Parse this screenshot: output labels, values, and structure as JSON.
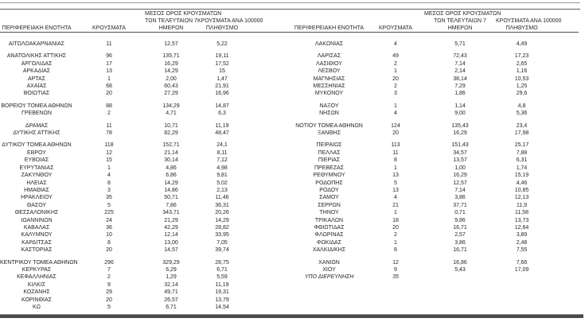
{
  "table": {
    "headers": {
      "region": "ΠΕΡΙΦΕΡΕΙΑΚΗ ΕΝΟΤΗΤΑ",
      "cases": "ΚΡΟΥΣΜΑΤΑ",
      "avg7_lines": [
        "ΜΕΣΟΣ ΟΡΟΣ ΚΡΟΥΣΜΑΤΩΝ",
        "ΤΩΝ ΤΕΛΕΥΤΑΙΩΝ 7",
        "ΗΜΕΡΩΝ"
      ],
      "per100k_lines": [
        "ΚΡΟΥΣΜΑΤΑ ΑΝΑ 100000",
        "ΠΛΗΘΥΣΜΟ"
      ]
    },
    "groups": [
      {
        "rows": [
          {
            "left": [
              "ΑΙΤΩΛΟΑΚΑΡΝΑΝΙΑΣ",
              "11",
              "12,57",
              "5,22"
            ],
            "right": [
              "ΛΑΚΩΝΙΑΣ",
              "4",
              "5,71",
              "4,49"
            ]
          }
        ]
      },
      {
        "rows": [
          {
            "left": [
              "ΑΝΑΤΟΛΙΚΗΣ ΑΤΤΙΚΗΣ",
              "96",
              "135,71",
              "19,11"
            ],
            "right": [
              "ΛΑΡΙΣΑΣ",
              "49",
              "72,43",
              "17,23"
            ]
          },
          {
            "left": [
              "ΑΡΓΟΛΙΔΑΣ",
              "17",
              "16,29",
              "17,52"
            ],
            "right": [
              "ΛΑΣΙΘΙΟΥ",
              "2",
              "7,14",
              "2,65"
            ]
          },
          {
            "left": [
              "ΑΡΚΑΔΙΑΣ",
              "13",
              "14,29",
              "15"
            ],
            "right": [
              "ΛΕΣΒΟΥ",
              "1",
              "2,14",
              "1,16"
            ]
          },
          {
            "left": [
              "ΑΡΤΑΣ",
              "1",
              "2,00",
              "1,47"
            ],
            "right": [
              "ΜΑΓΝΗΣΙΑΣ",
              "20",
              "38,14",
              "10,53"
            ]
          },
          {
            "left": [
              "ΑΧΑΪΑΣ",
              "68",
              "60,43",
              "21,91"
            ],
            "right": [
              "ΜΕΣΣΗΝΙΑΣ",
              "2",
              "7,29",
              "1,25"
            ]
          },
          {
            "left": [
              "ΒΟΙΩΤΙΑΣ",
              "20",
              "27,29",
              "16,96"
            ],
            "right": [
              "ΜΥΚΟΝΟΥ",
              "3",
              "1,86",
              "29,6"
            ]
          }
        ]
      },
      {
        "rows": [
          {
            "left": [
              "ΒΟΡΕΙΟΥ ΤΟΜΕΑ ΑΘΗΝΩΝ",
              "88",
              "134,29",
              "14,87"
            ],
            "right": [
              "ΝΑΞΟΥ",
              "1",
              "1,14",
              "4,8"
            ]
          },
          {
            "left": [
              "ΓΡΕΒΕΝΩΝ",
              "2",
              "4,71",
              "6,3"
            ],
            "right": [
              "ΝΗΣΩΝ",
              "4",
              "9,00",
              "5,36"
            ]
          }
        ]
      },
      {
        "rows": [
          {
            "left": [
              "ΔΡΑΜΑΣ",
              "11",
              "10,71",
              "11,19"
            ],
            "right": [
              "ΝΟΤΙΟΥ ΤΟΜΕΑ ΑΘΗΝΩΝ",
              "124",
              "135,43",
              "23,4"
            ]
          },
          {
            "left": [
              "ΔΥΤΙΚΗΣ ΑΤΤΙΚΗΣ",
              "78",
              "82,29",
              "48,47"
            ],
            "right": [
              "ΞΑΝΘΗΣ",
              "20",
              "16,29",
              "17,98"
            ]
          }
        ]
      },
      {
        "rows": [
          {
            "left": [
              "ΔΥΤΙΚΟΥ ΤΟΜΕΑ ΑΘΗΝΩΝ",
              "118",
              "152,71",
              "24,1"
            ],
            "right": [
              "ΠΕΙΡΑΙΩΣ",
              "113",
              "151,43",
              "25,17"
            ]
          },
          {
            "left": [
              "ΕΒΡΟΥ",
              "12",
              "21,14",
              "8,11"
            ],
            "right": [
              "ΠΕΛΛΑΣ",
              "11",
              "34,57",
              "7,88"
            ]
          },
          {
            "left": [
              "ΕΥΒΟΙΑΣ",
              "15",
              "30,14",
              "7,12"
            ],
            "right": [
              "ΠΙΕΡΙΑΣ",
              "8",
              "13,57",
              "6,31"
            ]
          },
          {
            "left": [
              "ΕΥΡΥΤΑΝΙΑΣ",
              "1",
              "4,86",
              "4,98"
            ],
            "right": [
              "ΠΡΕΒΕΖΑΣ",
              "1",
              "1,00",
              "1,74"
            ]
          },
          {
            "left": [
              "ΖΑΚΥΝΘΟΥ",
              "4",
              "6,86",
              "9,81"
            ],
            "right": [
              "ΡΕΘΥΜΝΟΥ",
              "13",
              "16,29",
              "15,19"
            ]
          },
          {
            "left": [
              "ΗΛΕΙΑΣ",
              "8",
              "14,29",
              "5,02"
            ],
            "right": [
              "ΡΟΔΟΠΗΣ",
              "5",
              "12,57",
              "4,46"
            ]
          },
          {
            "left": [
              "ΗΜΑΘΙΑΣ",
              "3",
              "14,86",
              "2,13"
            ],
            "right": [
              "ΡΟΔΟΥ",
              "13",
              "7,14",
              "10,85"
            ]
          },
          {
            "left": [
              "ΗΡΑΚΛΕΙΟΥ",
              "35",
              "50,71",
              "11,46"
            ],
            "right": [
              "ΣΑΜΟΥ",
              "4",
              "3,86",
              "12,13"
            ]
          },
          {
            "left": [
              "ΘΑΣΟΥ",
              "5",
              "7,86",
              "36,31"
            ],
            "right": [
              "ΣΕΡΡΩΝ",
              "21",
              "37,71",
              "11,9"
            ]
          },
          {
            "left": [
              "ΘΕΣΣΑΛΟΝΙΚΗΣ",
              "225",
              "343,71",
              "20,26"
            ],
            "right": [
              "ΤΗΝΟΥ",
              "1",
              "0,71",
              "11,58"
            ]
          },
          {
            "left": [
              "ΙΩΑΝΝΙΝΩΝ",
              "24",
              "21,29",
              "14,29"
            ],
            "right": [
              "ΤΡΙΚΑΛΩΝ",
              "18",
              "9,86",
              "13,73"
            ]
          },
          {
            "left": [
              "ΚΑΒΑΛΑΣ",
              "36",
              "42,29",
              "28,82"
            ],
            "right": [
              "ΦΘΙΩΤΙΔΑΣ",
              "20",
              "16,71",
              "12,64"
            ]
          },
          {
            "left": [
              "ΚΑΛΥΜΝΟΥ",
              "10",
              "12,14",
              "33,95"
            ],
            "right": [
              "ΦΛΩΡΙΝΑΣ",
              "2",
              "2,57",
              "3,89"
            ]
          },
          {
            "left": [
              "ΚΑΡΔΙΤΣΑΣ",
              "8",
              "13,00",
              "7,05"
            ],
            "right": [
              "ΦΩΚΙΔΑΣ",
              "1",
              "3,86",
              "2,48"
            ]
          },
          {
            "left": [
              "ΚΑΣΤΟΡΙΑΣ",
              "20",
              "14,57",
              "39,74"
            ],
            "right": [
              "ΧΑΛΚΙΔΙΚΗΣ",
              "8",
              "16,71",
              "7,55"
            ]
          }
        ]
      },
      {
        "rows": [
          {
            "left": [
              "ΚΕΝΤΡΙΚΟΥ ΤΟΜΕΑ ΑΘΗΝΩΝ",
              "296",
              "329,29",
              "28,75"
            ],
            "right": [
              "ΧΑΝΙΩΝ",
              "12",
              "16,86",
              "7,66"
            ]
          },
          {
            "left": [
              "ΚΕΡΚΥΡΑΣ",
              "7",
              "6,29",
              "6,71"
            ],
            "right": [
              "ΧΙΟΥ",
              "9",
              "5,43",
              "17,09"
            ]
          },
          {
            "left": [
              "ΚΕΦΑΛΛΗΝΙΑΣ",
              "2",
              "1,29",
              "5,59"
            ],
            "right": [
              "ΥΠΟ ΔΙΕΡΕΥΝΗΣΗ",
              "35",
              "",
              ""
            ],
            "right_italic": true
          },
          {
            "left": [
              "ΚΙΛΚΙΣ",
              "9",
              "32,14",
              "11,19"
            ],
            "right": null
          },
          {
            "left": [
              "ΚΟΖΑΝΗΣ",
              "29",
              "49,71",
              "19,31"
            ],
            "right": null
          },
          {
            "left": [
              "ΚΟΡΙΝΘΙΑΣ",
              "20",
              "26,57",
              "13,79"
            ],
            "right": null
          },
          {
            "left": [
              "ΚΩ",
              "5",
              "6,71",
              "14,54"
            ],
            "right": null
          }
        ]
      }
    ]
  },
  "colors": {
    "text": "#262626",
    "rule_light": "#9a9a9a",
    "rule_dark": "#5f5f5f",
    "header_rule": "#4f4f4f",
    "bottom_bar": "#4a4a4a",
    "background": "#ffffff"
  }
}
